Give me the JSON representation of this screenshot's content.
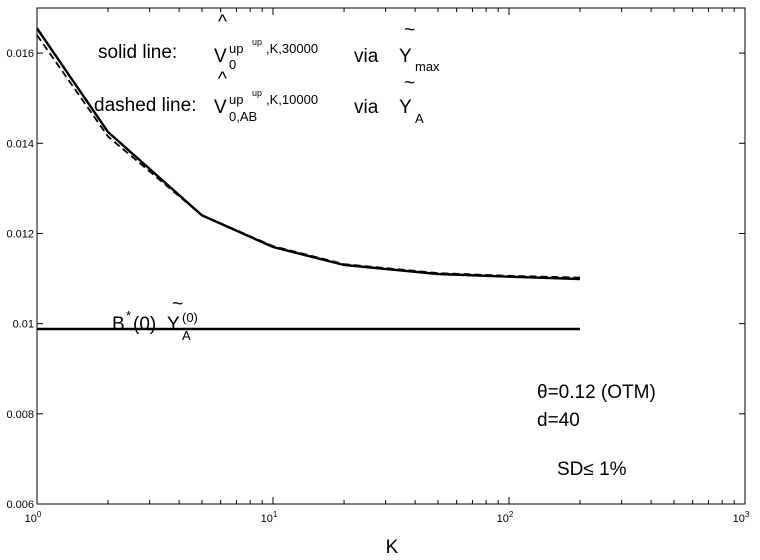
{
  "chart_data": {
    "type": "line",
    "xscale": "log",
    "xlim": [
      1,
      1000
    ],
    "ylim": [
      0.006,
      0.017
    ],
    "xlabel": "K",
    "ylabel": "",
    "title": "",
    "grid": false,
    "xticks": [
      {
        "value": 1,
        "base": "10",
        "exp": "0"
      },
      {
        "value": 10,
        "base": "10",
        "exp": "1"
      },
      {
        "value": 100,
        "base": "10",
        "exp": "2"
      },
      {
        "value": 1000,
        "base": "10",
        "exp": "3"
      }
    ],
    "yticks": [
      {
        "value": 0.006,
        "label": "0.006"
      },
      {
        "value": 0.008,
        "label": "0.008"
      },
      {
        "value": 0.01,
        "label": "0.01"
      },
      {
        "value": 0.012,
        "label": "0.012"
      },
      {
        "value": 0.014,
        "label": "0.014"
      },
      {
        "value": 0.016,
        "label": "0.016"
      }
    ],
    "series": [
      {
        "style": "solid",
        "x": [
          1,
          2,
          5,
          10,
          20,
          50,
          100,
          200
        ],
        "y": [
          0.01655,
          0.01425,
          0.0124,
          0.0117,
          0.0113,
          0.0111,
          0.01104,
          0.01099
        ]
      },
      {
        "style": "dashed",
        "x": [
          1,
          2,
          5,
          10,
          20,
          50,
          100,
          200
        ],
        "y": [
          0.0164,
          0.01415,
          0.0124,
          0.01172,
          0.01132,
          0.01112,
          0.01106,
          0.01102
        ]
      },
      {
        "style": "solid",
        "x": [
          1,
          200
        ],
        "y": [
          0.00988,
          0.00988
        ]
      }
    ],
    "annotations": {
      "solid_prefix": "solid line:",
      "dashed_prefix": "dashed line:",
      "hat": "^",
      "tilde": "~",
      "V": "V",
      "sub_0": "0",
      "sub_0AB": "0,AB",
      "sup_up": "up",
      "sup_up2": "up",
      "sup_rest_30000": ",K,30000",
      "sup_rest_10000": ",K,10000",
      "via": "via",
      "Y": "Y",
      "sub_max": "max",
      "sub_A": "A",
      "b_label_B": "B",
      "b_label_star": "*",
      "b_label_zero": "(0)",
      "b_label_Y": "Y",
      "b_label_sup0": "(0)",
      "b_label_subA": "A",
      "theta": "θ=0.12 (OTM)",
      "d": "d=40",
      "sd": "SD≤ 1%"
    }
  }
}
